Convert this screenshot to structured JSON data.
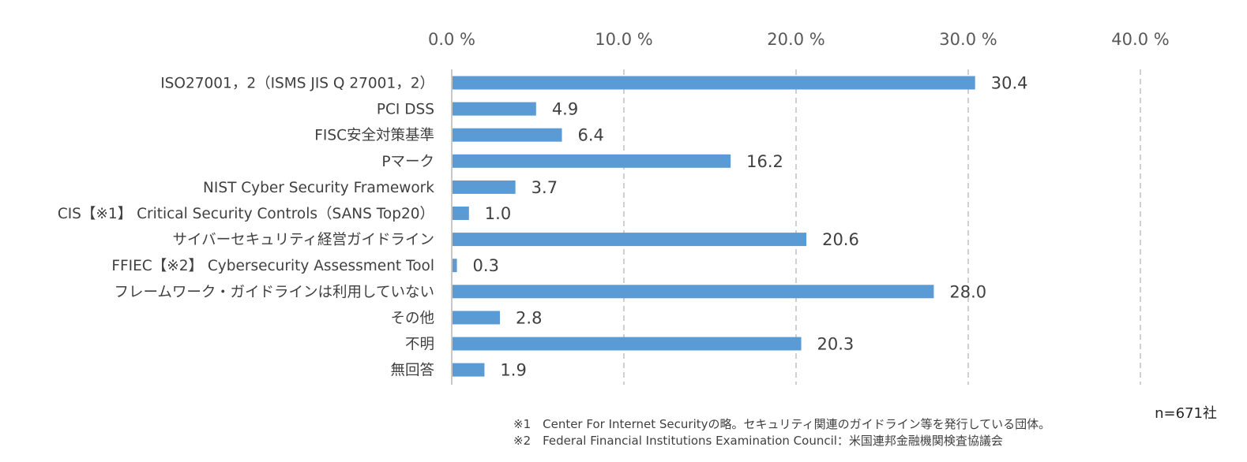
{
  "chart_data": {
    "type": "bar",
    "orientation": "horizontal",
    "categories": [
      "ISO27001，2（ISMS JIS Q 27001，2）",
      "PCI DSS",
      "FISC安全対策基準",
      "Pマーク",
      "NIST Cyber Security Framework",
      "CIS【※1】 Critical Security Controls（SANS Top20）",
      "サイバーセキュリティ経営ガイドライン",
      "FFIEC【※2】 Cybersecurity Assessment Tool",
      "フレームワーク・ガイドラインは利用していない",
      "その他",
      "不明",
      "無回答"
    ],
    "values": [
      30.4,
      4.9,
      6.4,
      16.2,
      3.7,
      1.0,
      20.6,
      0.3,
      28.0,
      2.8,
      20.3,
      1.9
    ],
    "value_labels": [
      "30.4",
      "4.9",
      "6.4",
      "16.2",
      "3.7",
      "1.0",
      "20.6",
      "0.3",
      "28.0",
      "2.8",
      "20.3",
      "1.9"
    ],
    "xlim": [
      0,
      40
    ],
    "x_ticks": [
      0,
      10,
      20,
      30,
      40
    ],
    "x_tick_labels": [
      "0.0 %",
      "10.0 %",
      "20.0 %",
      "30.0 %",
      "40.0 %"
    ],
    "axis_position": "top",
    "grid": "vertical-dashed",
    "bar_color": "#5b9bd5",
    "grid_color": "#d0d0d0"
  },
  "sample_size": "n=671社",
  "footnotes": [
    "※1　Center For Internet Securityの略。セキュリティ関連のガイドライン等を発行している団体。",
    "※2　Federal Financial Institutions Examination Council：米国連邦金融機関検査協議会"
  ]
}
